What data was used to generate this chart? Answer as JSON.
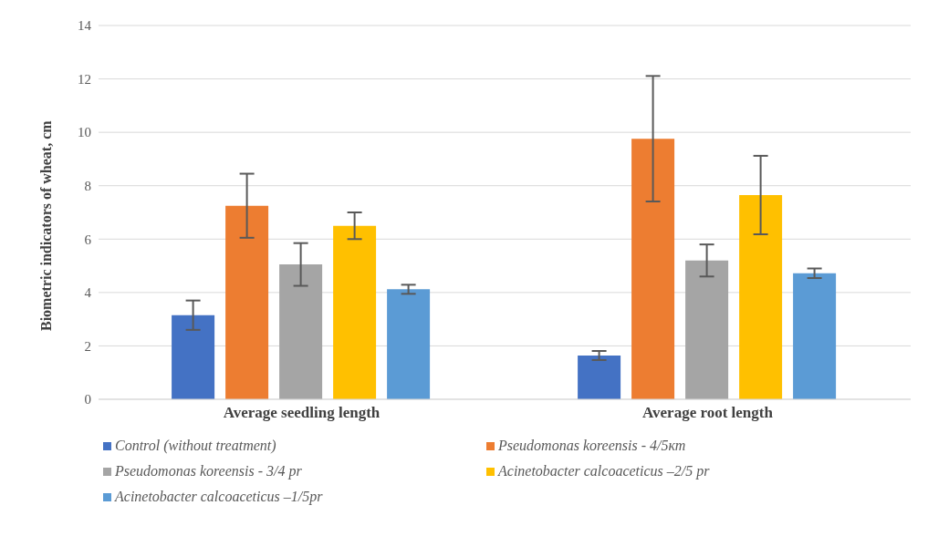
{
  "chart_data": {
    "type": "bar",
    "ylabel": "Biometric indicators of wheat, cm",
    "categories": [
      "Average seedling length",
      "Average root length"
    ],
    "series": [
      {
        "name": "Control (without treatment)",
        "color": "#4472c4",
        "values": [
          3.15,
          1.64
        ],
        "errors": [
          0.55,
          0.17
        ]
      },
      {
        "name": "Pseudomonas koreensis - 4/5кт",
        "color": "#ed7d31",
        "values": [
          7.25,
          9.76
        ],
        "errors": [
          1.2,
          2.35
        ]
      },
      {
        "name": "Pseudomonas koreensis - 3/4 pr",
        "color": "#a5a5a5",
        "values": [
          5.05,
          5.2
        ],
        "errors": [
          0.8,
          0.6
        ]
      },
      {
        "name": "Acinetobacter calcoaceticus –2/5 pr",
        "color": "#ffc000",
        "values": [
          6.5,
          7.65
        ],
        "errors": [
          0.5,
          1.47
        ]
      },
      {
        "name": "Acinetobacter calcoaceticus –1/5pr",
        "color": "#5b9bd5",
        "values": [
          4.12,
          4.72
        ],
        "errors": [
          0.17,
          0.18
        ]
      }
    ],
    "ylim": [
      0,
      14
    ],
    "yticks": [
      0,
      2,
      4,
      6,
      8,
      10,
      12,
      14
    ],
    "grid": "y",
    "legend": "bottom"
  }
}
